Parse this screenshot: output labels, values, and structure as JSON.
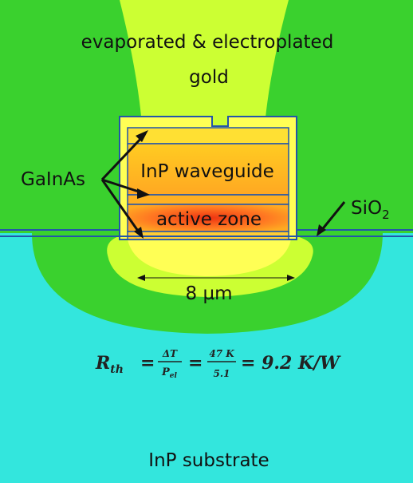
{
  "labels": {
    "top_line1": "evaporated & electroplated",
    "top_line2": "gold",
    "gainas": "GaInAs",
    "waveguide": "InP waveguide",
    "active": "active zone",
    "sio2": {
      "base": "SiO",
      "subscript": "2"
    },
    "width": "8 µm",
    "substrate": "InP substrate"
  },
  "equation": {
    "symbol": "R",
    "symbol_sub": "th",
    "eq1": "=",
    "num1": "ΔT",
    "den1": "P",
    "den1_sub": "el",
    "eq2": "=",
    "num2": "47 K",
    "den2": "5.1",
    "result": "= 9.2 K/W"
  }
}
